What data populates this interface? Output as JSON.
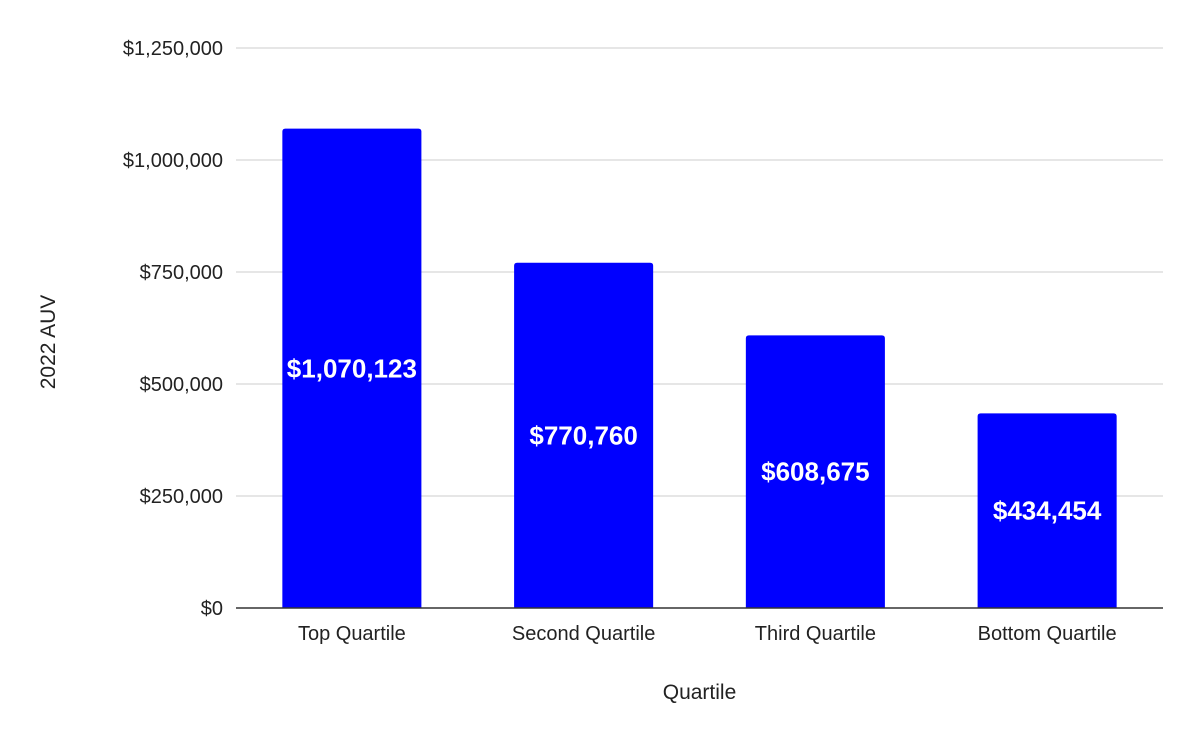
{
  "chart_data": {
    "type": "bar",
    "categories": [
      "Top Quartile",
      "Second Quartile",
      "Third Quartile",
      "Bottom Quartile"
    ],
    "values": [
      1070123,
      770760,
      608675,
      434454
    ],
    "data_labels": [
      "$1,070,123",
      "$770,760",
      "$608,675",
      "$434,454"
    ],
    "title": "",
    "xlabel": "Quartile",
    "ylabel": "2022 AUV",
    "ylim": [
      0,
      1250000
    ],
    "y_ticks": [
      0,
      250000,
      500000,
      750000,
      1000000,
      1250000
    ],
    "y_tick_labels": [
      "$0",
      "$250,000",
      "$500,000",
      "$750,000",
      "$1,000,000",
      "$1,250,000"
    ],
    "grid": true,
    "legend": "none",
    "bar_color": "#0000ff"
  }
}
